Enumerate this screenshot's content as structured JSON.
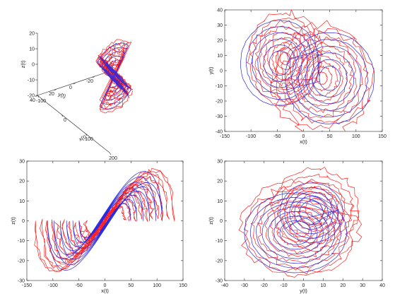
{
  "colors": {
    "series_a": "#ff2020",
    "series_b": "#2a2ae0",
    "axis": "#262626"
  },
  "chart_data": [
    {
      "type": "line",
      "projection": "3d",
      "xlabel": "x(t)",
      "ylabel": "y(t)",
      "zlabel": "z(t)",
      "xlim": [
        -100,
        200
      ],
      "ylim": [
        -40,
        40
      ],
      "zlim": [
        -20,
        20
      ],
      "xticks": [
        "-100",
        "0",
        "100",
        "200"
      ],
      "yticks": [
        "-40",
        "-20",
        "0",
        "20",
        "40"
      ],
      "zticks": [
        "-20",
        "-10",
        "0",
        "10",
        "20"
      ],
      "series": [
        {
          "values": []
        },
        {
          "values": []
        }
      ]
    },
    {
      "type": "line",
      "xlabel": "x(t)",
      "ylabel": "y(t)",
      "xlim": [
        -150,
        150
      ],
      "ylim": [
        -40,
        40
      ],
      "xticks": [
        "-150",
        "-100",
        "-50",
        "0",
        "50",
        "100",
        "150"
      ],
      "yticks": [
        "-40",
        "-30",
        "-20",
        "-10",
        "0",
        "10",
        "20",
        "30",
        "40"
      ],
      "series": [
        {
          "values": []
        },
        {
          "values": []
        }
      ]
    },
    {
      "type": "line",
      "xlabel": "x(t)",
      "ylabel": "z(t)",
      "xlim": [
        -150,
        150
      ],
      "ylim": [
        -30,
        30
      ],
      "xticks": [
        "-150",
        "-100",
        "-50",
        "0",
        "50",
        "100",
        "150"
      ],
      "yticks": [
        "-30",
        "-20",
        "-10",
        "0",
        "10",
        "20",
        "30"
      ],
      "series": [
        {
          "values": []
        },
        {
          "values": []
        }
      ]
    },
    {
      "type": "line",
      "xlabel": "y(t)",
      "ylabel": "z(t)",
      "xlim": [
        -40,
        40
      ],
      "ylim": [
        -30,
        30
      ],
      "xticks": [
        "-40",
        "-30",
        "-20",
        "-10",
        "0",
        "10",
        "20",
        "30",
        "40"
      ],
      "yticks": [
        "-30",
        "-20",
        "-10",
        "0",
        "10",
        "20",
        "30"
      ],
      "series": [
        {
          "values": []
        },
        {
          "values": []
        }
      ]
    }
  ]
}
